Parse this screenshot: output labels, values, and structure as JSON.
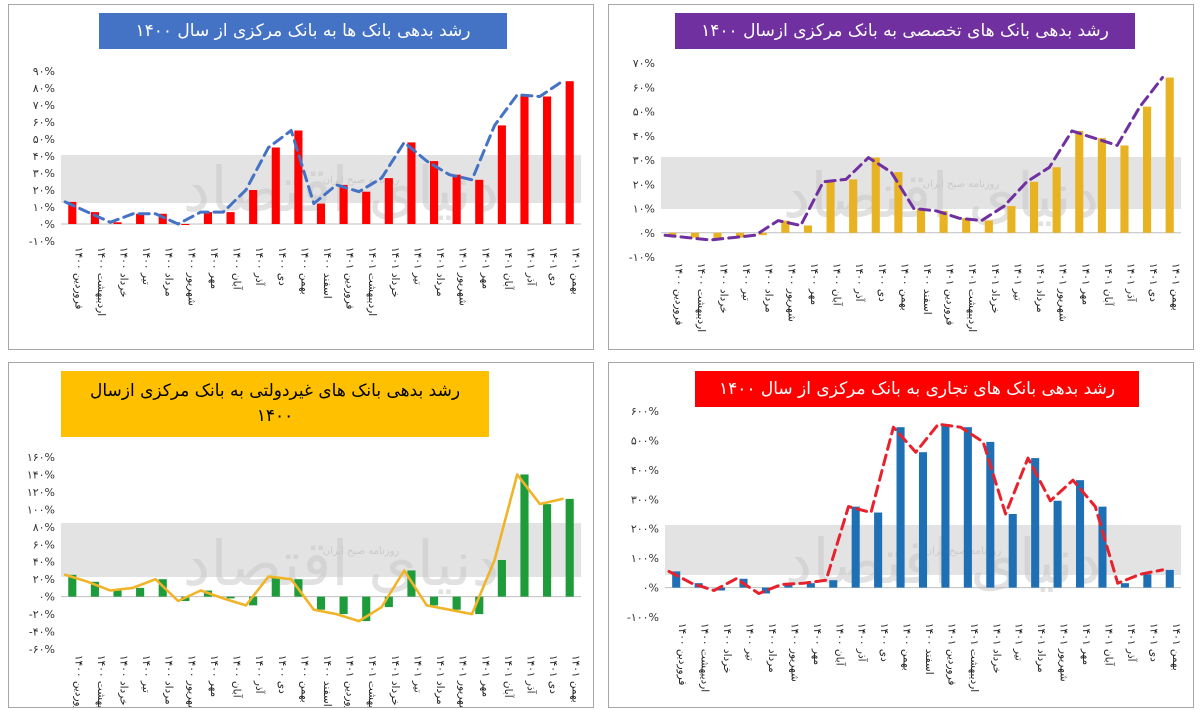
{
  "colors": {
    "title_blue": "#4472c4",
    "title_purple": "#7030a0",
    "title_yellow": "#ffc000",
    "title_red": "#ff0000",
    "red_bar": "#ff0000",
    "blue_dash": "#4472c4",
    "gold_bar": "#e8b323",
    "purple_dash": "#7030a0",
    "green_bar": "#1e9b3b",
    "orange_line": "#f0b429",
    "blue_bar": "#1f6fb5",
    "red_dash": "#e8222d",
    "watermark_band": "#d9d9d9"
  },
  "watermark": {
    "big": "دنیای اقتصاد",
    "small": "روزنامه صبح ایران"
  },
  "chart_data": [
    {
      "id": "banks",
      "type": "bar",
      "title": "رشد بدهی بانک ها به بانک مرکزی از سال ۱۴۰۰",
      "bar_color": "red_bar",
      "line_color": "blue_dash",
      "line_style": "dashed",
      "ylim": [
        -10,
        90
      ],
      "yticks": [
        "-۱۰%",
        "۰%",
        "۱۰%",
        "۲۰%",
        "۳۰%",
        "۴۰%",
        "۵۰%",
        "۶۰%",
        "۷۰%",
        "۸۰%",
        "۹۰%"
      ],
      "ytick_values": [
        -10,
        0,
        10,
        20,
        30,
        40,
        50,
        60,
        70,
        80,
        90
      ],
      "categories": [
        "فروردین ۱۴۰۰",
        "اردیبهشت ۱۴۰۰",
        "خرداد ۱۴۰۰",
        "تیر ۱۴۰۰",
        "مرداد ۱۴۰۰",
        "شهریور ۱۴۰۰",
        "مهر ۱۴۰۰",
        "آبان ۱۴۰۰",
        "آذر ۱۴۰۰",
        "دی ۱۴۰۰",
        "بهمن ۱۴۰۰",
        "اسفند ۱۴۰۰",
        "فروردین ۱۴۰۱",
        "اردیبهشت ۱۴۰۱",
        "خرداد ۱۴۰۱",
        "تیر ۱۴۰۱",
        "مرداد ۱۴۰۱",
        "شهریور ۱۴۰۱",
        "مهر ۱۴۰۱",
        "آبان ۱۴۰۱",
        "آذر ۱۴۰۱",
        "دی ۱۴۰۱",
        "بهمن ۱۴۰۱"
      ],
      "values": [
        13,
        7,
        1,
        6,
        6,
        0,
        7,
        7,
        20,
        45,
        55,
        12,
        23,
        19,
        27,
        48,
        37,
        29,
        26,
        58,
        76,
        75,
        84
      ]
    },
    {
      "id": "specialized",
      "type": "bar",
      "title": "رشد بدهی بانک های تخصصی به بانک مرکزی ازسال ۱۴۰۰",
      "bar_color": "gold_bar",
      "line_color": "purple_dash",
      "line_style": "dashed",
      "ylim": [
        -10,
        70
      ],
      "yticks": [
        "-۱۰%",
        "۰%",
        "۱۰%",
        "۲۰%",
        "۳۰%",
        "۴۰%",
        "۵۰%",
        "۶۰%",
        "۷۰%"
      ],
      "ytick_values": [
        -10,
        0,
        10,
        20,
        30,
        40,
        50,
        60,
        70
      ],
      "categories": [
        "فروردین ۱۴۰۰",
        "اردیبهشت ۱۴۰۰",
        "خرداد ۱۴۰۰",
        "تیر ۱۴۰۰",
        "مرداد ۱۴۰۰",
        "شهریور ۱۴۰۰",
        "مهر ۱۴۰۰",
        "آبان ۱۴۰۰",
        "آذر ۱۴۰۰",
        "دی ۱۴۰۰",
        "بهمن ۱۴۰۰",
        "اسفند ۱۴۰۰",
        "فروردین ۱۴۰۱",
        "اردیبهشت ۱۴۰۱",
        "خرداد ۱۴۰۱",
        "تیر ۱۴۰۱",
        "مرداد ۱۴۰۱",
        "شهریور ۱۴۰۱",
        "مهر ۱۴۰۱",
        "آبان ۱۴۰۱",
        "آذر ۱۴۰۱",
        "دی ۱۴۰۱",
        "بهمن ۱۴۰۱"
      ],
      "values": [
        -1,
        -2,
        -3,
        -2,
        -1,
        5,
        3,
        21,
        22,
        31,
        25,
        10,
        9,
        6,
        5,
        11,
        21,
        27,
        42,
        39,
        36,
        52,
        64
      ]
    },
    {
      "id": "nongov",
      "type": "bar",
      "title": "رشد بدهی بانک های غیردولتی به بانک مرکزی ازسال\n۱۴۰۰",
      "bar_color": "green_bar",
      "line_color": "orange_line",
      "line_style": "solid",
      "ylim": [
        -60,
        160
      ],
      "yticks": [
        "-۶۰%",
        "-۴۰%",
        "-۲۰%",
        "۰%",
        "۲۰%",
        "۴۰%",
        "۶۰%",
        "۸۰%",
        "۱۰۰%",
        "۱۲۰%",
        "۱۴۰%",
        "۱۶۰%"
      ],
      "ytick_values": [
        -60,
        -40,
        -20,
        0,
        20,
        40,
        60,
        80,
        100,
        120,
        140,
        160
      ],
      "categories": [
        "فروردین ۱۴۰۰",
        "اردیبهشت ۱۴۰۰",
        "خرداد ۱۴۰۰",
        "تیر ۱۴۰۰",
        "مرداد ۱۴۰۰",
        "شهریور ۱۴۰۰",
        "مهر ۱۴۰۰",
        "آبان ۱۴۰۰",
        "آذر ۱۴۰۰",
        "دی ۱۴۰۰",
        "بهمن ۱۴۰۰",
        "اسفند ۱۴۰۰",
        "فروردین ۱۴۰۱",
        "اردیبهشت ۱۴۰۱",
        "خرداد ۱۴۰۱",
        "تیر ۱۴۰۱",
        "مرداد ۱۴۰۱",
        "شهریور ۱۴۰۱",
        "مهر ۱۴۰۱",
        "آبان ۱۴۰۱",
        "آذر ۱۴۰۱",
        "دی ۱۴۰۱",
        "بهمن ۱۴۰۱"
      ],
      "values": [
        25,
        17,
        7,
        10,
        20,
        -5,
        7,
        -2,
        -10,
        23,
        20,
        -15,
        -20,
        -28,
        -12,
        30,
        -10,
        -15,
        -20,
        42,
        140,
        106,
        112
      ]
    },
    {
      "id": "commercial",
      "type": "bar",
      "title": "رشد بدهی بانک های تجاری به بانک مرکزی از سال ۱۴۰۰",
      "bar_color": "blue_bar",
      "line_color": "red_dash",
      "line_style": "dashed",
      "ylim": [
        -100,
        600
      ],
      "yticks": [
        "-۱۰۰%",
        "۰%",
        "۱۰۰%",
        "۲۰۰%",
        "۳۰۰%",
        "۴۰۰%",
        "۵۰۰%",
        "۶۰۰%"
      ],
      "ytick_values": [
        -100,
        0,
        100,
        200,
        300,
        400,
        500,
        600
      ],
      "categories": [
        "فروردین ۱۴۰۰",
        "اردیبهشت ۱۴۰۰",
        "خرداد ۱۴۰۰",
        "تیر ۱۴۰۰",
        "مرداد ۱۴۰۰",
        "شهریور ۱۴۰۰",
        "مهر ۱۴۰۰",
        "آبان ۱۴۰۰",
        "آذر ۱۴۰۰",
        "دی ۱۴۰۰",
        "بهمن ۱۴۰۰",
        "اسفند ۱۴۰۰",
        "فروردین ۱۴۰۱",
        "اردیبهشت ۱۴۰۱",
        "خرداد ۱۴۰۱",
        "تیر ۱۴۰۱",
        "مرداد ۱۴۰۱",
        "شهریور ۱۴۰۱",
        "مهر ۱۴۰۱",
        "آبان ۱۴۰۱",
        "آذر ۱۴۰۱",
        "دی ۱۴۰۱",
        "بهمن ۱۴۰۱"
      ],
      "values": [
        55,
        15,
        -10,
        30,
        -20,
        10,
        15,
        25,
        275,
        255,
        545,
        460,
        555,
        545,
        495,
        250,
        440,
        295,
        365,
        275,
        15,
        45,
        60
      ]
    }
  ]
}
